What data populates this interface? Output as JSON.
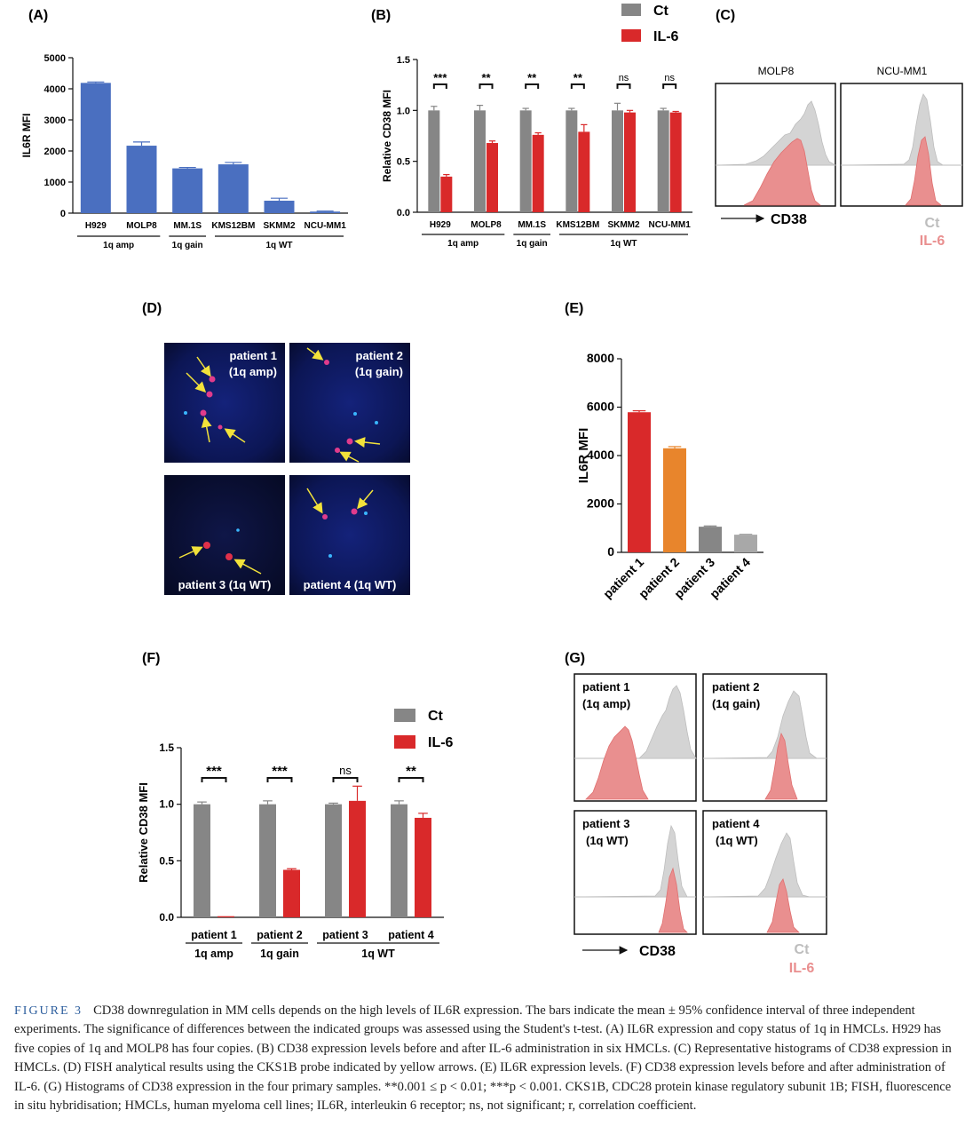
{
  "panels": {
    "A": "(A)",
    "B": "(B)",
    "C": "(C)",
    "D": "(D)",
    "E": "(E)",
    "F": "(F)",
    "G": "(G)"
  },
  "legend": {
    "ct": "Ct",
    "il6": "IL-6"
  },
  "colors": {
    "blue": "#4a6fc0",
    "gray": "#868686",
    "red": "#d9292a",
    "orange": "#e8852c",
    "lightgray": "#a8a8a8",
    "hist_gray": "#d4d4d4",
    "hist_red": "#e98f8f"
  },
  "chart_data": [
    {
      "panel": "A",
      "type": "bar",
      "ylabel": "IL6R MFI",
      "ylim": [
        0,
        5000
      ],
      "yticks": [
        0,
        1000,
        2000,
        3000,
        4000,
        5000
      ],
      "categories": [
        "H929",
        "MOLP8",
        "MM.1S",
        "KMS12BM",
        "SKMM2",
        "NCU-MM1"
      ],
      "values": [
        4190,
        2170,
        1440,
        1570,
        400,
        50
      ],
      "errors": [
        30,
        120,
        30,
        60,
        80,
        15
      ],
      "groups": [
        {
          "label": "1q amp",
          "from": 0,
          "to": 1
        },
        {
          "label": "1q gain",
          "from": 2,
          "to": 2
        },
        {
          "label": "1q WT",
          "from": 3,
          "to": 5
        }
      ]
    },
    {
      "panel": "B",
      "type": "bar",
      "ylabel": "Relative CD38 MFI",
      "ylim": [
        0,
        1.5
      ],
      "yticks": [
        "0.0",
        "0.5",
        "1.0",
        "1.5"
      ],
      "categories": [
        "H929",
        "MOLP8",
        "MM.1S",
        "KMS12BM",
        "SKMM2",
        "NCU-MM1"
      ],
      "series": [
        {
          "name": "Ct",
          "values": [
            1.0,
            1.0,
            1.0,
            1.0,
            1.0,
            1.0
          ],
          "errors": [
            0.04,
            0.05,
            0.02,
            0.02,
            0.07,
            0.02
          ]
        },
        {
          "name": "IL-6",
          "values": [
            0.35,
            0.68,
            0.76,
            0.79,
            0.98,
            0.98
          ],
          "errors": [
            0.02,
            0.02,
            0.02,
            0.07,
            0.02,
            0.01
          ]
        }
      ],
      "significance": [
        "***",
        "**",
        "**",
        "**",
        "ns",
        "ns"
      ],
      "groups": [
        {
          "label": "1q amp",
          "from": 0,
          "to": 1
        },
        {
          "label": "1q gain",
          "from": 2,
          "to": 2
        },
        {
          "label": "1q WT",
          "from": 3,
          "to": 5
        }
      ]
    },
    {
      "panel": "E",
      "type": "bar",
      "ylabel": "IL6R MFI",
      "ylim": [
        0,
        8000
      ],
      "yticks": [
        0,
        2000,
        4000,
        6000,
        8000
      ],
      "categories": [
        "patient 1",
        "patient 2",
        "patient 3",
        "patient 4"
      ],
      "values": [
        5790,
        4300,
        1060,
        730
      ],
      "errors": [
        60,
        70,
        30,
        20
      ],
      "colors": [
        "#d9292a",
        "#e8852c",
        "#868686",
        "#a8a8a8"
      ]
    },
    {
      "panel": "F",
      "type": "bar",
      "ylabel": "Relative CD38 MFI",
      "ylim": [
        0,
        1.5
      ],
      "yticks": [
        "0.0",
        "0.5",
        "1.0",
        "1.5"
      ],
      "categories": [
        "patient 1",
        "patient 2",
        "patient 3",
        "patient 4"
      ],
      "series": [
        {
          "name": "Ct",
          "values": [
            1.0,
            1.0,
            1.0,
            1.0
          ],
          "errors": [
            0.02,
            0.03,
            0.01,
            0.03
          ]
        },
        {
          "name": "IL-6",
          "values": [
            0.01,
            0.42,
            1.03,
            0.88
          ],
          "errors": [
            0.0,
            0.01,
            0.13,
            0.04
          ]
        }
      ],
      "significance": [
        "***",
        "***",
        "ns",
        "**"
      ],
      "groups": [
        {
          "label": "1q amp",
          "from": 0,
          "to": 0
        },
        {
          "label": "1q gain",
          "from": 1,
          "to": 1
        },
        {
          "label": "1q WT",
          "from": 2,
          "to": 3
        }
      ]
    }
  ],
  "histC": {
    "titles": [
      "MOLP8",
      "NCU-MM1"
    ],
    "axis": "CD38"
  },
  "fishD": {
    "labels": [
      [
        "patient 1",
        "(1q amp)"
      ],
      [
        "patient 2",
        "(1q gain)"
      ],
      [
        "patient 3 (1q WT)"
      ],
      [
        "patient 4 (1q WT)"
      ]
    ]
  },
  "histG": {
    "labels": [
      [
        "patient 1",
        "(1q amp)"
      ],
      [
        "patient 2",
        "(1q gain)"
      ],
      [
        "patient 3",
        "(1q WT)"
      ],
      [
        "patient 4",
        "(1q WT)"
      ]
    ],
    "axis": "CD38"
  },
  "caption": {
    "figure_label": "FIGURE 3",
    "text": "CD38 downregulation in MM cells depends on the high levels of IL6R expression. The bars indicate the mean ± 95% confidence interval of three independent experiments. The significance of differences between the indicated groups was assessed using the Student's t-test. (A) IL6R expression and copy status of 1q in HMCLs. H929 has five copies of 1q and MOLP8 has four copies. (B) CD38 expression levels before and after IL-6 administration in six HMCLs. (C) Representative histograms of CD38 expression in HMCLs. (D) FISH analytical results using the CKS1B probe indicated by yellow arrows. (E) IL6R expression levels. (F) CD38 expression levels before and after administration of IL-6. (G) Histograms of CD38 expression in the four primary samples. **0.001 ≤ p < 0.01; ***p < 0.001. CKS1B, CDC28 protein kinase regulatory subunit 1B; FISH, fluorescence in situ hybridisation; HMCLs, human myeloma cell lines; IL6R, interleukin 6 receptor; ns, not significant; r, correlation coefficient."
  }
}
